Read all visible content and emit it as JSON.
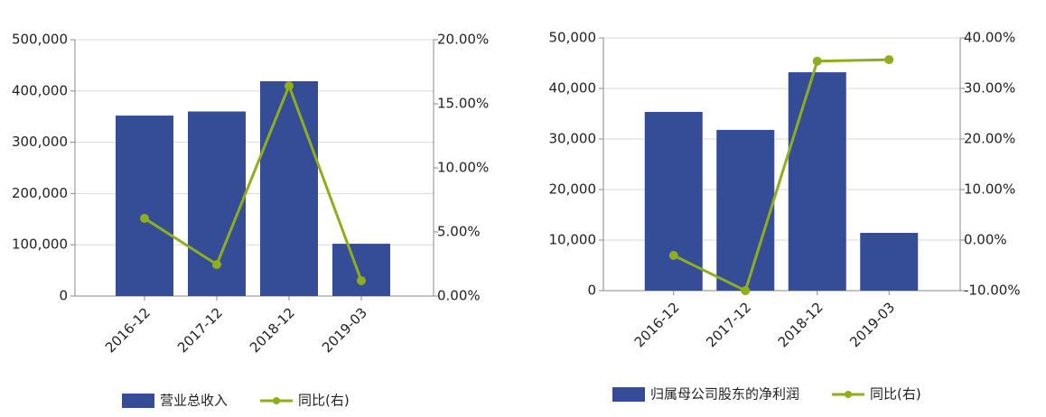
{
  "chart_data": [
    {
      "type": "bar",
      "categories": [
        "2016-12",
        "2017-12",
        "2018-12",
        "2019-03"
      ],
      "series": [
        {
          "name": "营业总收入",
          "type": "bar",
          "color": "#354c97",
          "values": [
            352000,
            360000,
            419000,
            102000
          ]
        },
        {
          "name": "同比(右)",
          "type": "line",
          "axis": "y2",
          "color": "#8fae1b",
          "values": [
            6.06,
            2.46,
            16.4,
            1.2
          ]
        }
      ],
      "ylim": [
        0,
        500000
      ],
      "yticks": [
        0,
        {
          "value": 100000,
          "label": "100,000"
        },
        {
          "value": 200000,
          "label": "200,000"
        },
        {
          "value": 300000,
          "label": "300,000"
        },
        {
          "value": 400000,
          "label": "400,000"
        },
        {
          "value": 500000,
          "label": "500,000"
        }
      ],
      "y2lim": [
        0,
        20
      ],
      "y2ticks": [
        {
          "value": 0,
          "label": "0.00%"
        },
        {
          "value": 5,
          "label": "5.00%"
        },
        {
          "value": 10,
          "label": "10.00%"
        },
        {
          "value": 15,
          "label": "15.00%"
        },
        {
          "value": 20,
          "label": "20.00%"
        }
      ],
      "grid": true,
      "legend": "bottom"
    },
    {
      "type": "bar",
      "categories": [
        "2016-12",
        "2017-12",
        "2018-12",
        "2019-03"
      ],
      "series": [
        {
          "name": "归属母公司股东的净利润",
          "type": "bar",
          "color": "#354c97",
          "values": [
            35360,
            31800,
            43200,
            11430
          ]
        },
        {
          "name": "同比(右)",
          "type": "line",
          "axis": "y2",
          "color": "#8fae1b",
          "values": [
            -3.04,
            -10.0,
            35.4,
            35.7
          ]
        }
      ],
      "ylim": [
        0,
        50000
      ],
      "yticks": [
        0,
        {
          "value": 10000,
          "label": "10,000"
        },
        {
          "value": 20000,
          "label": "20,000"
        },
        {
          "value": 30000,
          "label": "30,000"
        },
        {
          "value": 40000,
          "label": "40,000"
        },
        {
          "value": 50000,
          "label": "50,000"
        }
      ],
      "y2lim": [
        -10,
        40
      ],
      "y2ticks": [
        {
          "value": -10,
          "label": "-10.00%"
        },
        {
          "value": 0,
          "label": "0.00%"
        },
        {
          "value": 10,
          "label": "10.00%"
        },
        {
          "value": 20,
          "label": "20.00%"
        },
        {
          "value": 30,
          "label": "30.00%"
        },
        {
          "value": 40,
          "label": "40.00%"
        }
      ],
      "grid": true,
      "legend": "bottom"
    }
  ]
}
